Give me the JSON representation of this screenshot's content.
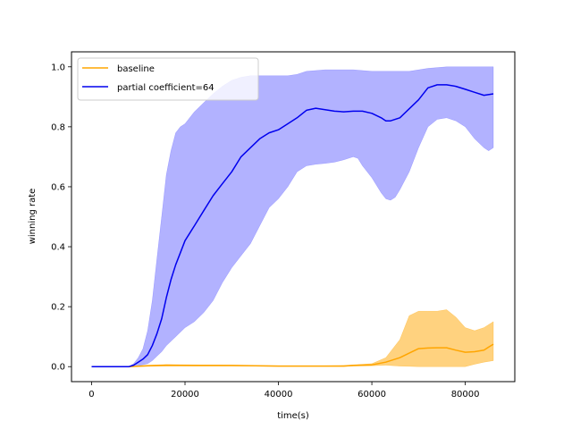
{
  "chart_data": {
    "type": "line",
    "xlabel": "time(s)",
    "ylabel": "winning rate",
    "xlim": [
      -4300,
      90600
    ],
    "ylim": [
      -0.05,
      1.05
    ],
    "xticks": [
      0,
      20000,
      40000,
      60000,
      80000
    ],
    "xtick_labels": [
      "0",
      "20000",
      "40000",
      "60000",
      "80000"
    ],
    "yticks": [
      0.0,
      0.2,
      0.4,
      0.6,
      0.8,
      1.0
    ],
    "ytick_labels": [
      "0.0",
      "0.2",
      "0.4",
      "0.6",
      "0.8",
      "1.0"
    ],
    "grid": false,
    "legend_position": "top-left",
    "series": [
      {
        "name": "baseline",
        "color": "#ffa500",
        "band_color": "#ffa500",
        "mean": [
          [
            0,
            0.0
          ],
          [
            8000,
            0.0
          ],
          [
            12000,
            0.003
          ],
          [
            16000,
            0.005
          ],
          [
            22000,
            0.004
          ],
          [
            30000,
            0.004
          ],
          [
            40000,
            0.002
          ],
          [
            50000,
            0.002
          ],
          [
            54000,
            0.002
          ],
          [
            56000,
            0.004
          ],
          [
            60000,
            0.006
          ],
          [
            63000,
            0.015
          ],
          [
            66000,
            0.03
          ],
          [
            68000,
            0.045
          ],
          [
            70000,
            0.06
          ],
          [
            72000,
            0.062
          ],
          [
            74000,
            0.063
          ],
          [
            76000,
            0.063
          ],
          [
            78000,
            0.055
          ],
          [
            80000,
            0.048
          ],
          [
            82000,
            0.05
          ],
          [
            84000,
            0.055
          ],
          [
            85000,
            0.065
          ],
          [
            86000,
            0.075
          ]
        ],
        "upper": [
          [
            0,
            0.0
          ],
          [
            8000,
            0.0
          ],
          [
            12000,
            0.005
          ],
          [
            16000,
            0.007
          ],
          [
            22000,
            0.006
          ],
          [
            30000,
            0.005
          ],
          [
            40000,
            0.003
          ],
          [
            50000,
            0.003
          ],
          [
            54000,
            0.004
          ],
          [
            56000,
            0.006
          ],
          [
            60000,
            0.01
          ],
          [
            63000,
            0.03
          ],
          [
            66000,
            0.09
          ],
          [
            68000,
            0.17
          ],
          [
            70000,
            0.185
          ],
          [
            72000,
            0.185
          ],
          [
            74000,
            0.185
          ],
          [
            76000,
            0.19
          ],
          [
            78000,
            0.165
          ],
          [
            80000,
            0.13
          ],
          [
            82000,
            0.12
          ],
          [
            84000,
            0.13
          ],
          [
            86000,
            0.15
          ]
        ],
        "lower": [
          [
            0,
            0.0
          ],
          [
            8000,
            0.0
          ],
          [
            12000,
            0.001
          ],
          [
            16000,
            0.002
          ],
          [
            22000,
            0.002
          ],
          [
            30000,
            0.002
          ],
          [
            40000,
            0.001
          ],
          [
            50000,
            0.001
          ],
          [
            54000,
            0.001
          ],
          [
            56000,
            0.002
          ],
          [
            60000,
            0.003
          ],
          [
            63000,
            0.005
          ],
          [
            66000,
            0.002
          ],
          [
            68000,
            0.001
          ],
          [
            70000,
            0.0
          ],
          [
            74000,
            0.0
          ],
          [
            78000,
            0.0
          ],
          [
            80000,
            0.0
          ],
          [
            82000,
            0.008
          ],
          [
            84000,
            0.015
          ],
          [
            86000,
            0.02
          ]
        ]
      },
      {
        "name": "partial coefficient=64",
        "color": "#0000ee",
        "band_color": "#6666ff",
        "mean": [
          [
            0,
            0.0
          ],
          [
            8000,
            0.0
          ],
          [
            9000,
            0.005
          ],
          [
            10000,
            0.015
          ],
          [
            11000,
            0.025
          ],
          [
            12000,
            0.04
          ],
          [
            13000,
            0.07
          ],
          [
            14000,
            0.11
          ],
          [
            15000,
            0.16
          ],
          [
            16000,
            0.23
          ],
          [
            17000,
            0.29
          ],
          [
            18000,
            0.34
          ],
          [
            19000,
            0.38
          ],
          [
            20000,
            0.42
          ],
          [
            22000,
            0.47
          ],
          [
            24000,
            0.52
          ],
          [
            26000,
            0.57
          ],
          [
            28000,
            0.61
          ],
          [
            30000,
            0.65
          ],
          [
            32000,
            0.7
          ],
          [
            34000,
            0.73
          ],
          [
            36000,
            0.76
          ],
          [
            38000,
            0.78
          ],
          [
            40000,
            0.79
          ],
          [
            42000,
            0.81
          ],
          [
            44000,
            0.83
          ],
          [
            46000,
            0.855
          ],
          [
            48000,
            0.862
          ],
          [
            50000,
            0.857
          ],
          [
            52000,
            0.852
          ],
          [
            54000,
            0.85
          ],
          [
            56000,
            0.852
          ],
          [
            58000,
            0.852
          ],
          [
            60000,
            0.845
          ],
          [
            62000,
            0.83
          ],
          [
            63000,
            0.82
          ],
          [
            64000,
            0.82
          ],
          [
            66000,
            0.83
          ],
          [
            68000,
            0.86
          ],
          [
            70000,
            0.89
          ],
          [
            72000,
            0.93
          ],
          [
            74000,
            0.94
          ],
          [
            76000,
            0.94
          ],
          [
            78000,
            0.935
          ],
          [
            80000,
            0.925
          ],
          [
            82000,
            0.915
          ],
          [
            84000,
            0.905
          ],
          [
            86000,
            0.91
          ]
        ],
        "upper": [
          [
            0,
            0.0
          ],
          [
            8000,
            0.0
          ],
          [
            9000,
            0.01
          ],
          [
            10000,
            0.03
          ],
          [
            11000,
            0.06
          ],
          [
            12000,
            0.12
          ],
          [
            13000,
            0.22
          ],
          [
            14000,
            0.36
          ],
          [
            15000,
            0.5
          ],
          [
            16000,
            0.64
          ],
          [
            17000,
            0.72
          ],
          [
            18000,
            0.78
          ],
          [
            19000,
            0.8
          ],
          [
            20000,
            0.81
          ],
          [
            22000,
            0.85
          ],
          [
            24000,
            0.88
          ],
          [
            26000,
            0.91
          ],
          [
            28000,
            0.935
          ],
          [
            30000,
            0.955
          ],
          [
            32000,
            0.965
          ],
          [
            34000,
            0.97
          ],
          [
            38000,
            0.97
          ],
          [
            42000,
            0.97
          ],
          [
            44000,
            0.975
          ],
          [
            46000,
            0.985
          ],
          [
            50000,
            0.99
          ],
          [
            56000,
            0.99
          ],
          [
            60000,
            0.985
          ],
          [
            64000,
            0.985
          ],
          [
            68000,
            0.985
          ],
          [
            72000,
            0.995
          ],
          [
            76000,
            1.0
          ],
          [
            86000,
            1.0
          ]
        ],
        "lower": [
          [
            0,
            0.0
          ],
          [
            8000,
            0.0
          ],
          [
            9000,
            0.0
          ],
          [
            10000,
            0.003
          ],
          [
            12000,
            0.01
          ],
          [
            13000,
            0.02
          ],
          [
            14000,
            0.035
          ],
          [
            15000,
            0.05
          ],
          [
            16000,
            0.07
          ],
          [
            18000,
            0.1
          ],
          [
            20000,
            0.13
          ],
          [
            22000,
            0.15
          ],
          [
            24000,
            0.18
          ],
          [
            26000,
            0.22
          ],
          [
            28000,
            0.28
          ],
          [
            30000,
            0.33
          ],
          [
            32000,
            0.37
          ],
          [
            34000,
            0.41
          ],
          [
            36000,
            0.47
          ],
          [
            38000,
            0.53
          ],
          [
            40000,
            0.56
          ],
          [
            42000,
            0.6
          ],
          [
            44000,
            0.65
          ],
          [
            46000,
            0.67
          ],
          [
            48000,
            0.675
          ],
          [
            50000,
            0.678
          ],
          [
            52000,
            0.682
          ],
          [
            54000,
            0.69
          ],
          [
            56000,
            0.7
          ],
          [
            57000,
            0.695
          ],
          [
            58000,
            0.67
          ],
          [
            60000,
            0.63
          ],
          [
            62000,
            0.58
          ],
          [
            63000,
            0.56
          ],
          [
            64000,
            0.555
          ],
          [
            65000,
            0.565
          ],
          [
            66000,
            0.59
          ],
          [
            68000,
            0.65
          ],
          [
            70000,
            0.73
          ],
          [
            72000,
            0.8
          ],
          [
            74000,
            0.825
          ],
          [
            76000,
            0.83
          ],
          [
            78000,
            0.82
          ],
          [
            80000,
            0.8
          ],
          [
            82000,
            0.76
          ],
          [
            84000,
            0.73
          ],
          [
            85000,
            0.72
          ],
          [
            86000,
            0.73
          ]
        ]
      }
    ]
  }
}
